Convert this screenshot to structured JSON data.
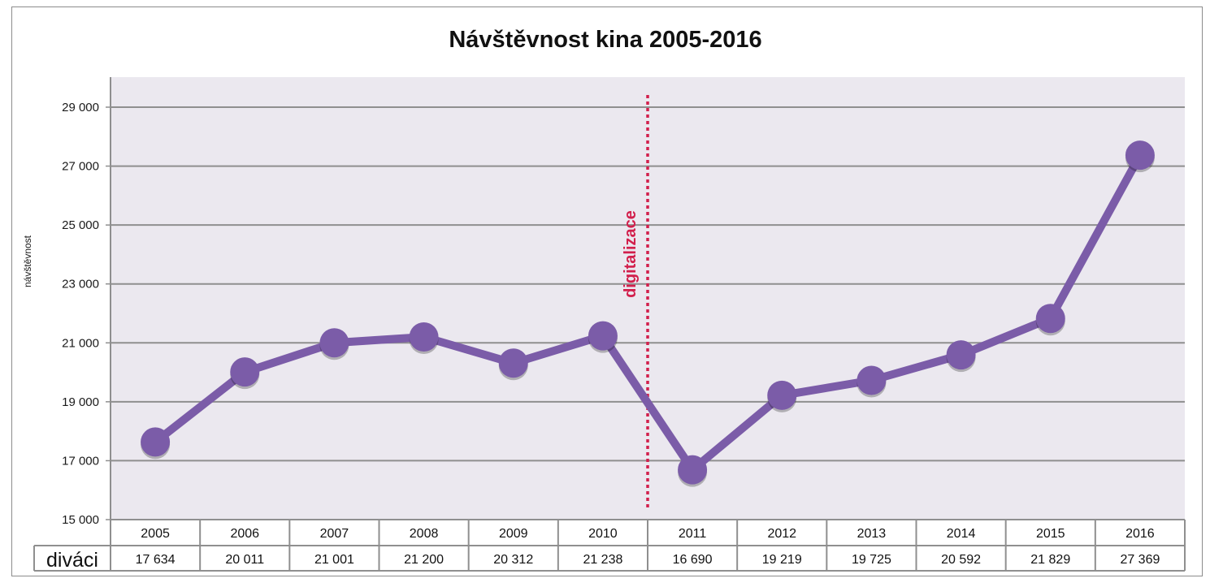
{
  "chart_data": {
    "type": "line",
    "title": "Návštěvnost kina 2005-2016",
    "ylabel": "návštěvnost",
    "xlabel": "",
    "categories": [
      "2005",
      "2006",
      "2007",
      "2008",
      "2009",
      "2010",
      "2011",
      "2012",
      "2013",
      "2014",
      "2015",
      "2016"
    ],
    "series": [
      {
        "name": "diváci",
        "values": [
          17634,
          20011,
          21001,
          21200,
          20312,
          21238,
          16690,
          19219,
          19725,
          20592,
          21829,
          27369
        ],
        "value_labels": [
          "17 634",
          "20 011",
          "21 001",
          "21 200",
          "20 312",
          "21 238",
          "16 690",
          "19 219",
          "19 725",
          "20 592",
          "21 829",
          "27 369"
        ]
      }
    ],
    "ylim": [
      15000,
      29000
    ],
    "yticks": [
      15000,
      17000,
      19000,
      21000,
      23000,
      25000,
      27000,
      29000
    ],
    "ytick_labels": [
      "15 000",
      "17 000",
      "19 000",
      "21 000",
      "23 000",
      "25 000",
      "27 000",
      "29 000"
    ],
    "grid": true,
    "annotation": {
      "text": "digitalizace",
      "between": [
        "2010",
        "2011"
      ],
      "style": "dotted vertical line"
    },
    "data_table": true,
    "colors": {
      "series": "#7b5ca8",
      "annotation": "#d21f4c",
      "plot_bg": "#ebe8ef",
      "grid": "#8f8f8f"
    }
  }
}
